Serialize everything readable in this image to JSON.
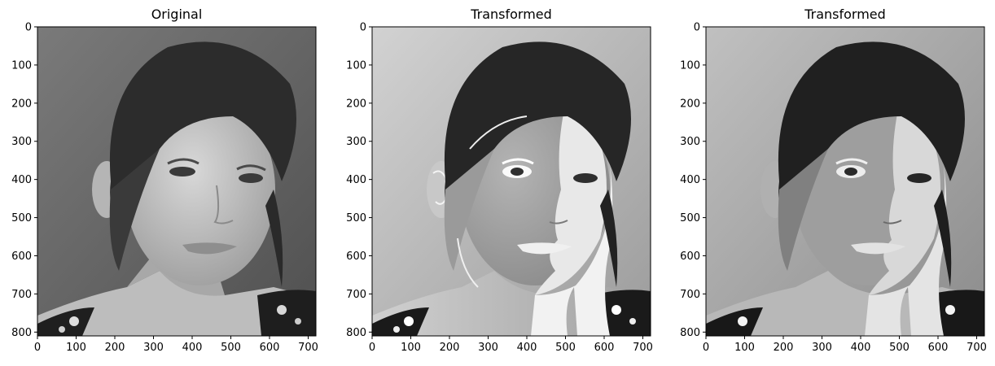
{
  "figure": {
    "panels": [
      {
        "title": "Original",
        "variant": "original",
        "x_ticks": [
          "0",
          "100",
          "200",
          "300",
          "400",
          "500",
          "600",
          "700"
        ],
        "y_ticks": [
          "0",
          "100",
          "200",
          "300",
          "400",
          "500",
          "600",
          "700",
          "800"
        ]
      },
      {
        "title": "Transformed",
        "variant": "transformed-a",
        "x_ticks": [
          "0",
          "100",
          "200",
          "300",
          "400",
          "500",
          "600",
          "700"
        ],
        "y_ticks": [
          "0",
          "100",
          "200",
          "300",
          "400",
          "500",
          "600",
          "700",
          "800"
        ]
      },
      {
        "title": "Transformed",
        "variant": "transformed-b",
        "x_ticks": [
          "0",
          "100",
          "200",
          "300",
          "400",
          "500",
          "600",
          "700"
        ],
        "y_ticks": [
          "0",
          "100",
          "200",
          "300",
          "400",
          "500",
          "600",
          "700",
          "800"
        ]
      }
    ],
    "image_extent": {
      "width": 720,
      "height": 810
    },
    "colors": {
      "axes": "#000000",
      "background": "#ffffff"
    }
  }
}
